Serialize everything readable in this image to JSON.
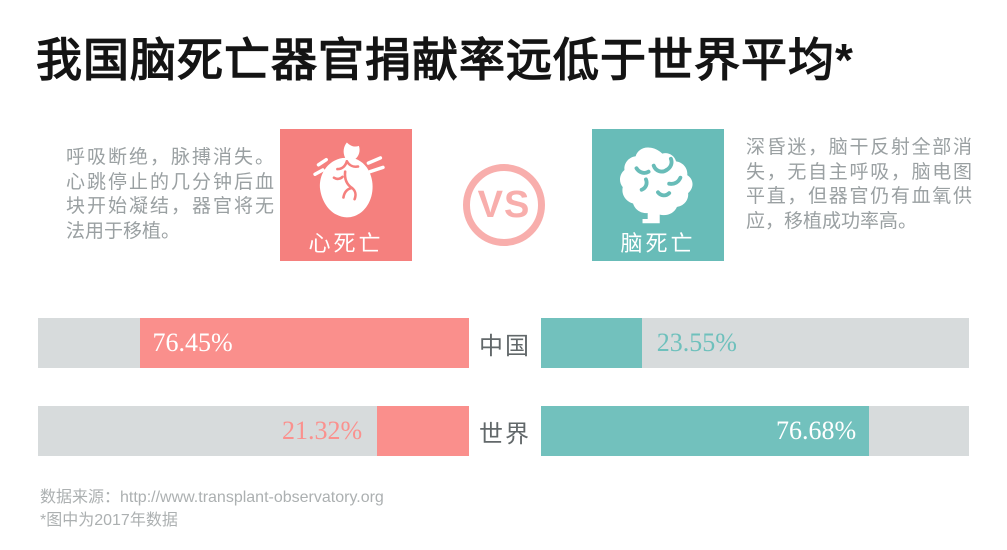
{
  "title": "我国脑死亡器官捐献率远低于世界平均*",
  "heart_card": {
    "label": "心死亡",
    "description": "呼吸断绝，脉搏消失。心跳停止的几分钟后血块开始凝结，器官将无法用于移植。",
    "color": "#F5807E"
  },
  "brain_card": {
    "label": "脑死亡",
    "description": "深昏迷，脑干反射全部消失，无自主呼吸，脑电图平直，但器官仍有血氧供应，移植成功率高。",
    "color": "#68BCB8"
  },
  "vs_label": "VS",
  "rows": [
    {
      "category": "中国",
      "heart_value": 76.45,
      "heart_label": "76.45%",
      "brain_value": 23.55,
      "brain_label": "23.55%"
    },
    {
      "category": "世界",
      "heart_value": 21.32,
      "heart_label": "21.32%",
      "brain_value": 76.68,
      "brain_label": "76.68%"
    }
  ],
  "chart_data": {
    "type": "bar",
    "title": "我国脑死亡器官捐献率远低于世界平均*",
    "categories": [
      "中国",
      "世界"
    ],
    "series": [
      {
        "name": "心死亡",
        "color": "#FA8F8C",
        "values": [
          76.45,
          21.32
        ],
        "labels": [
          "76.45%",
          "21.32%"
        ]
      },
      {
        "name": "脑死亡",
        "color": "#72C1BD",
        "values": [
          23.55,
          76.68
        ],
        "labels": [
          "23.55%",
          "76.68%"
        ]
      }
    ],
    "unit": "%",
    "xlim": [
      0,
      100
    ],
    "track_color": "#D7DBDC",
    "layout": "mirrored horizontal bars; 心死亡 bars right-anchored on left half, 脑死亡 bars left-anchored on right half, category label centered between"
  },
  "footer": {
    "source": "数据来源：http://www.transplant-observatory.org",
    "note": "*图中为2017年数据"
  }
}
